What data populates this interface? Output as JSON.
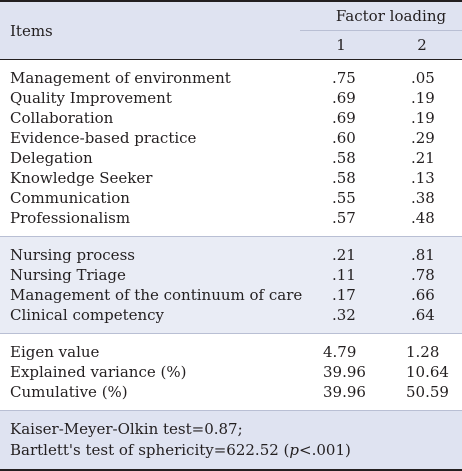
{
  "header": {
    "items": "Items",
    "factor_loading": "Factor  loading",
    "factor_1": "1",
    "factor_2": "2"
  },
  "group_a": [
    {
      "label": "Management of environment",
      "f1": ".75",
      "f2": ".05"
    },
    {
      "label": "Quality Improvement",
      "f1": ".69",
      "f2": ".19"
    },
    {
      "label": "Collaboration",
      "f1": ".69",
      "f2": ".19"
    },
    {
      "label": "Evidence-based practice",
      "f1": ".60",
      "f2": ".29"
    },
    {
      "label": "Delegation",
      "f1": ".58",
      "f2": ".21"
    },
    {
      "label": "Knowledge Seeker",
      "f1": ".58",
      "f2": ".13"
    },
    {
      "label": "Communication",
      "f1": ".55",
      "f2": ".38"
    },
    {
      "label": "Professionalism",
      "f1": ".57",
      "f2": ".48"
    }
  ],
  "group_b": [
    {
      "label": "Nursing process",
      "f1": ".21",
      "f2": ".81"
    },
    {
      "label": "Nursing Triage",
      "f1": ".11",
      "f2": ".78"
    },
    {
      "label": "Management of the continuum of care",
      "f1": ".17",
      "f2": ".66"
    },
    {
      "label": "Clinical competency",
      "f1": ".32",
      "f2": ".64"
    }
  ],
  "stats": [
    {
      "label": "Eigen value",
      "f1": "4.79",
      "f2": "1.28"
    },
    {
      "label": "Explained variance (%)",
      "f1": "39.96",
      "f2": "10.64"
    },
    {
      "label": "Cumulative (%)",
      "f1": "39.96",
      "f2": "50.59"
    }
  ],
  "note": {
    "line1": "Kaiser-Meyer-Olkin test=0.87;",
    "line2_prefix": "Bartlett's test of sphericity=622.52 (",
    "line2_p": "p",
    "line2_suffix": "<.001)"
  }
}
